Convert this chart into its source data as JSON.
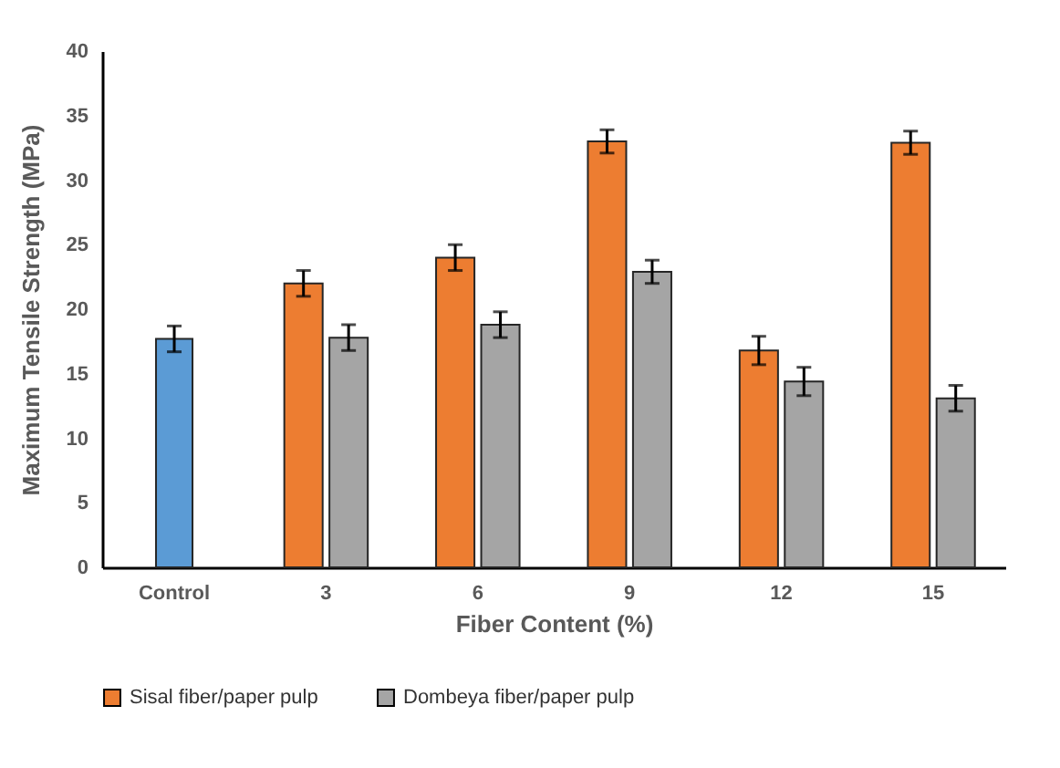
{
  "chart_data": {
    "type": "bar",
    "xlabel": "Fiber Content (%)",
    "ylabel": "Maximum Tensile Strength (MPa)",
    "categories": [
      "Control",
      "3",
      "6",
      "9",
      "12",
      "15"
    ],
    "series": [
      {
        "color": "#5b9bd5",
        "values": [
          17.7,
          null,
          null,
          null,
          null,
          null
        ],
        "errors": [
          1.0,
          null,
          null,
          null,
          null,
          null
        ]
      },
      {
        "name": "Sisal fiber/paper pulp",
        "color": "#ed7d31",
        "values": [
          null,
          22.0,
          24.0,
          33.0,
          16.8,
          32.9
        ],
        "errors": [
          null,
          1.0,
          1.0,
          0.9,
          1.1,
          0.9
        ]
      },
      {
        "name": "Dombeya fiber/paper pulp",
        "color": "#a5a5a5",
        "values": [
          null,
          17.8,
          18.8,
          22.9,
          14.4,
          13.1
        ],
        "errors": [
          null,
          1.0,
          1.0,
          0.9,
          1.1,
          1.0
        ]
      }
    ],
    "ylim": [
      0,
      40
    ],
    "yticks": [
      0,
      5,
      10,
      15,
      20,
      25,
      30,
      35,
      40
    ],
    "grid": false,
    "legend": "bottom"
  }
}
